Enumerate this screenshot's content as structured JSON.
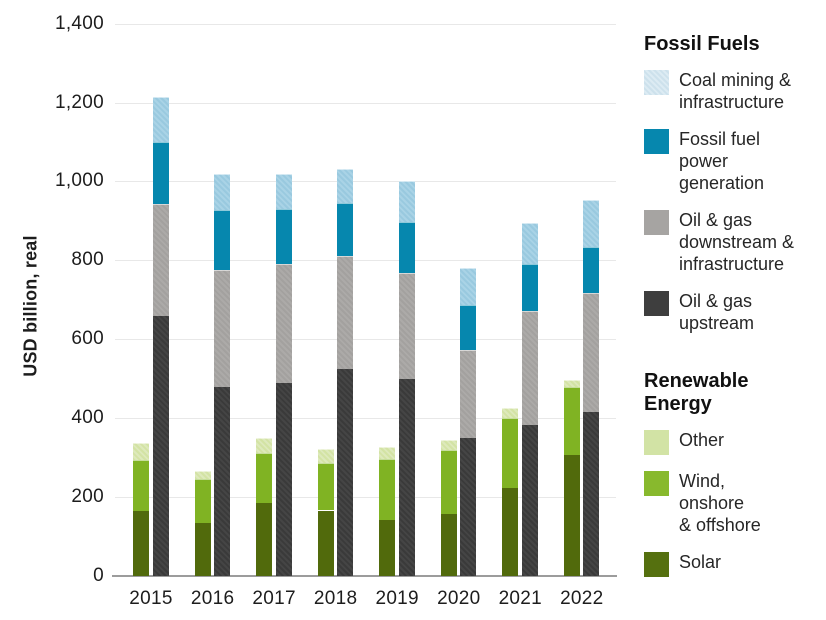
{
  "chart_data": {
    "type": "bar",
    "variant": "grouped-stacked",
    "title": "",
    "xlabel": "",
    "ylabel": "USD billion, real",
    "categories": [
      "2015",
      "2016",
      "2017",
      "2018",
      "2019",
      "2020",
      "2021",
      "2022"
    ],
    "ylim": [
      0,
      1400
    ],
    "grid": true,
    "legend_position": "right",
    "y_ticks": [
      {
        "value": 0,
        "label": "0"
      },
      {
        "value": 200,
        "label": "200"
      },
      {
        "value": 400,
        "label": "400"
      },
      {
        "value": 600,
        "label": "600"
      },
      {
        "value": 800,
        "label": "800"
      },
      {
        "value": 1000,
        "label": "1,000"
      },
      {
        "value": 1200,
        "label": "1,200"
      },
      {
        "value": 1400,
        "label": "1,400"
      }
    ],
    "groups": [
      {
        "name": "Renewable Energy",
        "bar": "left",
        "series": [
          {
            "name": "Solar",
            "color": "#516a0c",
            "values": [
              165,
              135,
              184,
              166,
              142,
              158,
              222,
              306
            ]
          },
          {
            "name": "Wind, onshore & offshore",
            "color": "#80b323",
            "values": [
              130,
              110,
              128,
              121,
              154,
              162,
              179,
              174
            ]
          },
          {
            "name": "Other",
            "color": "#d3e3a4",
            "color2": "#dde9bb",
            "values": [
              43,
              20,
              38,
              34,
              31,
              25,
              25,
              18
            ]
          }
        ]
      },
      {
        "name": "Fossil Fuels",
        "bar": "right",
        "series": [
          {
            "name": "Oil & gas upstream",
            "color": "#3a3a3a",
            "color2": "#454545",
            "values": [
              660,
              480,
              490,
              525,
              500,
              350,
              382,
              415
            ]
          },
          {
            "name": "Oil & gas downstream & infrastructure",
            "color": "#a3a19f",
            "color2": "#acaaa8",
            "values": [
              283,
              295,
              300,
              287,
              267,
              222,
              290,
              302
            ]
          },
          {
            "name": "Fossil fuel power generation",
            "color": "#0687ae",
            "values": [
              157,
              152,
              140,
              133,
              130,
              114,
              118,
              117
            ]
          },
          {
            "name": "Coal mining & infrastructure",
            "color": "#99c9df",
            "color2": "#a9d3e6",
            "values": [
              115,
              93,
              88,
              87,
              104,
              94,
              104,
              118
            ]
          }
        ]
      }
    ]
  },
  "legend": {
    "groups": [
      {
        "heading": "Fossil Fuels",
        "items": [
          {
            "label": "Coal mining &\ninfrastructure",
            "color": "#cde1ec",
            "color2": "#dcebf3"
          },
          {
            "label": "Fossil fuel\npower\ngeneration",
            "color": "#0687ae"
          },
          {
            "label": "Oil & gas\ndownstream &\ninfrastructure",
            "color": "#a6a4a2"
          },
          {
            "label": "Oil & gas\nupstream",
            "color": "#3e3e3e"
          }
        ]
      },
      {
        "heading": "Renewable\nEnergy",
        "items": [
          {
            "label": "Other",
            "color": "#d2e3a5"
          },
          {
            "label": "Wind,\nonshore\n& offshore",
            "color": "#88b92d"
          },
          {
            "label": "Solar",
            "color": "#55700f"
          }
        ]
      }
    ]
  },
  "colors": {
    "background": "#ffffff",
    "gridline": "#e8e8e8",
    "axis_line": "#9c9c9c",
    "tick_text": "#1d1d1d"
  }
}
